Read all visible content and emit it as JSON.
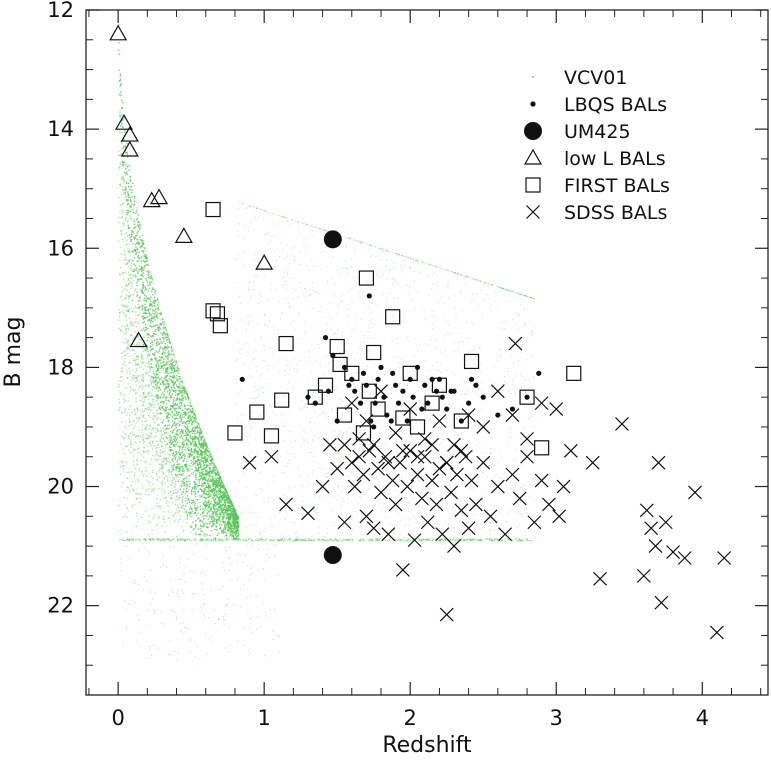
{
  "chart_data": {
    "type": "scatter",
    "title": "",
    "xlabel": "Redshift",
    "ylabel": "B mag",
    "xlim": [
      -0.22,
      4.45
    ],
    "ylim": [
      12,
      23.5
    ],
    "y_inverted": true,
    "x_ticks": [
      0,
      1,
      2,
      3,
      4
    ],
    "y_ticks": [
      12,
      14,
      16,
      18,
      20,
      22
    ],
    "grid": false,
    "legend_position": "top-right",
    "colors": {
      "vcv01": "#55c455",
      "markers": "#111111",
      "frame": "#222222"
    },
    "series": [
      {
        "name": "VCV01",
        "marker": "tiny-dot",
        "note_points": "dense background cloud; representative envelope",
        "envelope": {
          "z": [
            0.0,
            0.5,
            0.8,
            1.5,
            2.0,
            2.5,
            3.0
          ],
          "faint_limit": 20.9
        }
      },
      {
        "name": "LBQS BALs",
        "marker": "small-filled-circle",
        "points": [
          [
            0.85,
            18.2
          ],
          [
            1.42,
            17.5
          ],
          [
            1.47,
            17.8
          ],
          [
            1.55,
            18.0
          ],
          [
            1.6,
            18.2
          ],
          [
            1.62,
            18.4
          ],
          [
            1.66,
            18.6
          ],
          [
            1.7,
            18.3
          ],
          [
            1.72,
            16.8
          ],
          [
            1.73,
            18.9
          ],
          [
            1.76,
            18.6
          ],
          [
            1.78,
            18.2
          ],
          [
            1.8,
            18.0
          ],
          [
            1.82,
            18.5
          ],
          [
            1.84,
            18.8
          ],
          [
            1.88,
            18.1
          ],
          [
            1.9,
            18.3
          ],
          [
            1.92,
            18.6
          ],
          [
            1.95,
            18.4
          ],
          [
            1.98,
            18.9
          ],
          [
            2.0,
            18.2
          ],
          [
            2.02,
            18.5
          ],
          [
            2.05,
            18.0
          ],
          [
            2.08,
            18.7
          ],
          [
            2.1,
            18.3
          ],
          [
            2.12,
            18.6
          ],
          [
            2.15,
            18.2
          ],
          [
            2.18,
            18.4
          ],
          [
            2.2,
            18.2
          ],
          [
            2.22,
            18.5
          ],
          [
            2.25,
            18.7
          ],
          [
            2.3,
            18.4
          ],
          [
            2.35,
            18.9
          ],
          [
            2.4,
            18.6
          ],
          [
            2.45,
            18.3
          ],
          [
            2.5,
            18.5
          ],
          [
            2.6,
            18.8
          ],
          [
            2.7,
            18.7
          ],
          [
            2.8,
            18.5
          ],
          [
            2.88,
            18.1
          ],
          [
            1.35,
            18.6
          ],
          [
            1.3,
            18.5
          ],
          [
            1.5,
            18.9
          ],
          [
            1.58,
            18.3
          ],
          [
            1.68,
            18.1
          ],
          [
            1.87,
            18.9
          ],
          [
            2.28,
            18.4
          ],
          [
            2.42,
            18.2
          ],
          [
            1.44,
            18.4
          ],
          [
            1.75,
            19.0
          ]
        ]
      },
      {
        "name": "UM425",
        "marker": "large-filled-circle",
        "points": [
          [
            1.47,
            15.85
          ],
          [
            1.47,
            21.15
          ]
        ]
      },
      {
        "name": "low L BALs",
        "marker": "open-triangle",
        "points": [
          [
            0.0,
            12.4
          ],
          [
            0.04,
            13.9
          ],
          [
            0.08,
            14.1
          ],
          [
            0.08,
            14.35
          ],
          [
            0.23,
            15.2
          ],
          [
            0.28,
            15.15
          ],
          [
            0.45,
            15.8
          ],
          [
            0.14,
            17.55
          ],
          [
            1.0,
            16.25
          ]
        ]
      },
      {
        "name": "FIRST BALs",
        "marker": "open-square",
        "points": [
          [
            0.65,
            15.35
          ],
          [
            0.65,
            17.05
          ],
          [
            0.68,
            17.1
          ],
          [
            0.7,
            17.3
          ],
          [
            0.8,
            19.1
          ],
          [
            0.95,
            18.75
          ],
          [
            1.05,
            19.15
          ],
          [
            1.12,
            18.55
          ],
          [
            1.15,
            17.6
          ],
          [
            1.35,
            18.5
          ],
          [
            1.42,
            18.3
          ],
          [
            1.5,
            17.65
          ],
          [
            1.52,
            17.95
          ],
          [
            1.55,
            18.8
          ],
          [
            1.6,
            18.1
          ],
          [
            1.7,
            16.5
          ],
          [
            1.72,
            18.4
          ],
          [
            1.75,
            17.75
          ],
          [
            1.78,
            18.7
          ],
          [
            1.88,
            17.15
          ],
          [
            1.95,
            18.85
          ],
          [
            2.0,
            18.1
          ],
          [
            2.05,
            19.0
          ],
          [
            2.2,
            18.3
          ],
          [
            2.35,
            18.9
          ],
          [
            2.42,
            17.9
          ],
          [
            2.8,
            18.5
          ],
          [
            2.9,
            19.35
          ],
          [
            3.12,
            18.1
          ],
          [
            1.68,
            19.1
          ],
          [
            2.15,
            18.6
          ]
        ]
      },
      {
        "name": "SDSS BALs",
        "marker": "x-cross",
        "points": [
          [
            0.9,
            19.6
          ],
          [
            1.05,
            19.5
          ],
          [
            1.15,
            20.3
          ],
          [
            1.3,
            20.45
          ],
          [
            1.55,
            19.3
          ],
          [
            1.6,
            19.6
          ],
          [
            1.62,
            20.0
          ],
          [
            1.65,
            19.2
          ],
          [
            1.68,
            19.8
          ],
          [
            1.7,
            20.5
          ],
          [
            1.72,
            19.4
          ],
          [
            1.75,
            20.7
          ],
          [
            1.78,
            19.7
          ],
          [
            1.8,
            20.1
          ],
          [
            1.83,
            19.5
          ],
          [
            1.85,
            20.8
          ],
          [
            1.88,
            19.9
          ],
          [
            1.9,
            20.3
          ],
          [
            1.93,
            19.6
          ],
          [
            1.95,
            21.4
          ],
          [
            1.98,
            20.0
          ],
          [
            2.0,
            19.4
          ],
          [
            2.03,
            20.9
          ],
          [
            2.05,
            19.8
          ],
          [
            2.08,
            20.2
          ],
          [
            2.1,
            19.5
          ],
          [
            2.12,
            20.6
          ],
          [
            2.15,
            19.9
          ],
          [
            2.18,
            20.3
          ],
          [
            2.2,
            19.7
          ],
          [
            2.22,
            20.8
          ],
          [
            2.25,
            19.6
          ],
          [
            2.28,
            20.1
          ],
          [
            2.3,
            21.0
          ],
          [
            2.32,
            19.8
          ],
          [
            2.35,
            20.4
          ],
          [
            2.38,
            19.5
          ],
          [
            2.4,
            20.7
          ],
          [
            2.42,
            19.9
          ],
          [
            2.45,
            20.3
          ],
          [
            2.5,
            19.6
          ],
          [
            2.55,
            20.5
          ],
          [
            2.6,
            20.0
          ],
          [
            2.65,
            20.8
          ],
          [
            2.7,
            19.8
          ],
          [
            2.72,
            17.6
          ],
          [
            2.75,
            20.2
          ],
          [
            2.8,
            19.5
          ],
          [
            2.85,
            20.6
          ],
          [
            2.9,
            19.9
          ],
          [
            2.95,
            20.3
          ],
          [
            3.0,
            18.7
          ],
          [
            3.02,
            20.5
          ],
          [
            3.05,
            20.0
          ],
          [
            3.1,
            19.4
          ],
          [
            3.25,
            19.6
          ],
          [
            3.3,
            21.55
          ],
          [
            3.45,
            18.95
          ],
          [
            3.6,
            21.5
          ],
          [
            3.62,
            20.4
          ],
          [
            3.65,
            20.7
          ],
          [
            3.68,
            21.0
          ],
          [
            3.7,
            19.6
          ],
          [
            3.72,
            21.95
          ],
          [
            3.75,
            20.6
          ],
          [
            3.8,
            21.1
          ],
          [
            3.88,
            21.2
          ],
          [
            3.95,
            20.1
          ],
          [
            4.1,
            22.45
          ],
          [
            4.15,
            21.2
          ],
          [
            2.25,
            22.15
          ],
          [
            1.55,
            20.6
          ],
          [
            1.5,
            19.7
          ],
          [
            1.6,
            18.6
          ],
          [
            1.7,
            18.9
          ],
          [
            1.8,
            18.4
          ],
          [
            1.9,
            19.1
          ],
          [
            2.0,
            18.7
          ],
          [
            2.1,
            19.2
          ],
          [
            2.2,
            18.9
          ],
          [
            2.3,
            19.3
          ],
          [
            2.4,
            18.8
          ],
          [
            2.5,
            19.0
          ],
          [
            2.6,
            18.4
          ],
          [
            2.7,
            18.8
          ],
          [
            2.8,
            19.2
          ],
          [
            2.9,
            18.6
          ],
          [
            1.65,
            19.5
          ],
          [
            1.75,
            19.3
          ],
          [
            1.85,
            19.6
          ],
          [
            1.95,
            19.4
          ],
          [
            2.05,
            19.5
          ],
          [
            2.15,
            19.3
          ],
          [
            2.25,
            19.6
          ],
          [
            2.35,
            19.4
          ],
          [
            1.45,
            19.3
          ],
          [
            1.4,
            20.0
          ]
        ]
      }
    ]
  }
}
